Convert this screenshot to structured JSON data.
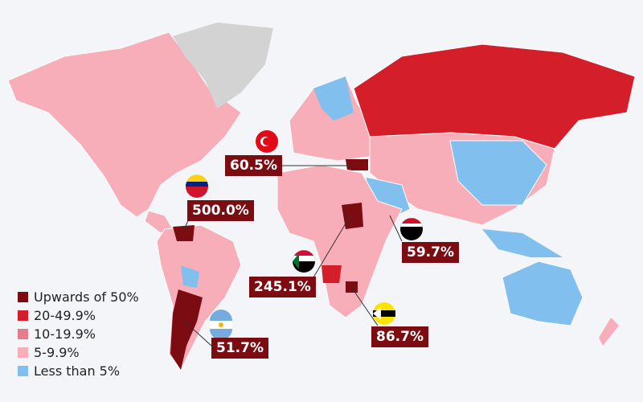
{
  "legend": {
    "items": [
      {
        "label": "Upwards of 50%",
        "color": "#7b0c12"
      },
      {
        "label": "20-49.9%",
        "color": "#d41f2a"
      },
      {
        "label": "10-19.9%",
        "color": "#e57b8c"
      },
      {
        "label": "5-9.9%",
        "color": "#f8aeb8"
      },
      {
        "label": "Less than 5%",
        "color": "#80bfee"
      }
    ]
  },
  "callouts": [
    {
      "label": "60.5%"
    },
    {
      "label": "500.0%"
    },
    {
      "label": "59.7%"
    },
    {
      "label": "245.1%"
    },
    {
      "label": "86.7%"
    },
    {
      "label": "51.7%"
    }
  ]
}
